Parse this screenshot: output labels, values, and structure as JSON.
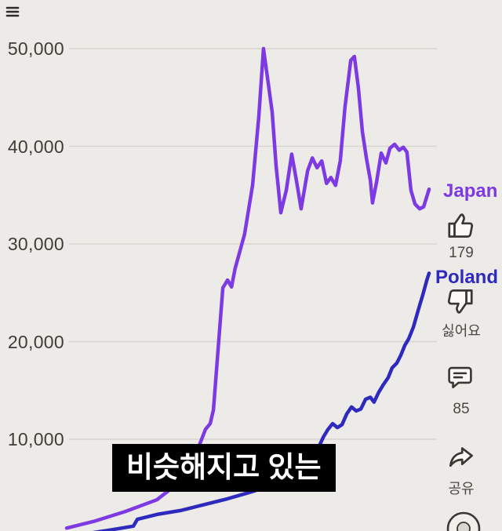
{
  "page": {
    "background": "#edebe8"
  },
  "chart_data": {
    "type": "line",
    "title": "",
    "xlabel": "",
    "ylabel": "",
    "grid": true,
    "legend_position": "line-end-labels",
    "y_axis": {
      "ticks": [
        50000,
        40000,
        30000,
        20000,
        10000
      ],
      "tick_labels": [
        "50,000",
        "40,000",
        "30,000",
        "20,000",
        "10,000"
      ],
      "range": [
        0,
        52000
      ]
    },
    "x_axis": {
      "tick_labels": [],
      "note": "time axis cropped out of frame, x given as percent of visible span"
    },
    "series": [
      {
        "name": "Japan",
        "color": "#7d3ae2",
        "points": [
          [
            0,
            900
          ],
          [
            7.6,
            1600
          ],
          [
            16.2,
            2600
          ],
          [
            24.9,
            3800
          ],
          [
            32.5,
            6000
          ],
          [
            35.7,
            8500
          ],
          [
            38.3,
            11000
          ],
          [
            39.6,
            11600
          ],
          [
            40.5,
            13000
          ],
          [
            43.1,
            25500
          ],
          [
            44.4,
            26300
          ],
          [
            45.5,
            25600
          ],
          [
            46.5,
            27500
          ],
          [
            49.1,
            31000
          ],
          [
            51.3,
            36000
          ],
          [
            53,
            43000
          ],
          [
            54.3,
            50000
          ],
          [
            55.6,
            46500
          ],
          [
            56.7,
            43500
          ],
          [
            57.8,
            38000
          ],
          [
            59.1,
            33200
          ],
          [
            60.6,
            35500
          ],
          [
            62.1,
            39200
          ],
          [
            63.4,
            36500
          ],
          [
            64.7,
            33600
          ],
          [
            66.5,
            37500
          ],
          [
            67.8,
            38800
          ],
          [
            69.1,
            37800
          ],
          [
            70.4,
            38500
          ],
          [
            71.7,
            36200
          ],
          [
            72.9,
            36800
          ],
          [
            74.2,
            36000
          ],
          [
            75.5,
            38500
          ],
          [
            76.8,
            44000
          ],
          [
            78.4,
            48800
          ],
          [
            79.4,
            49200
          ],
          [
            80.5,
            46000
          ],
          [
            81.6,
            41500
          ],
          [
            82.7,
            38800
          ],
          [
            83.8,
            36500
          ],
          [
            84.4,
            34200
          ],
          [
            85.5,
            36300
          ],
          [
            86.8,
            39300
          ],
          [
            88.1,
            38300
          ],
          [
            89.2,
            39800
          ],
          [
            90.5,
            40200
          ],
          [
            91.8,
            39600
          ],
          [
            92.9,
            39900
          ],
          [
            93.9,
            39400
          ],
          [
            95,
            35500
          ],
          [
            96.1,
            34100
          ],
          [
            97.4,
            33600
          ],
          [
            98.5,
            33800
          ],
          [
            100,
            35600
          ]
        ]
      },
      {
        "name": "Poland",
        "color": "#2e2abe",
        "points": [
          [
            3.2,
            200
          ],
          [
            11.9,
            700
          ],
          [
            18.4,
            1100
          ],
          [
            19.5,
            1800
          ],
          [
            24.9,
            2300
          ],
          [
            31.4,
            2700
          ],
          [
            37.9,
            3300
          ],
          [
            44.4,
            3900
          ],
          [
            50.9,
            4600
          ],
          [
            57.4,
            5400
          ],
          [
            61.7,
            6100
          ],
          [
            64.9,
            7000
          ],
          [
            67.1,
            8100
          ],
          [
            69.3,
            9000
          ],
          [
            70.8,
            10200
          ],
          [
            72.1,
            11000
          ],
          [
            73.4,
            11600
          ],
          [
            74.7,
            11200
          ],
          [
            76,
            11500
          ],
          [
            77.3,
            12600
          ],
          [
            78.6,
            13300
          ],
          [
            79.9,
            12900
          ],
          [
            81.2,
            13100
          ],
          [
            82.5,
            14100
          ],
          [
            83.8,
            14300
          ],
          [
            84.8,
            13800
          ],
          [
            86.1,
            14800
          ],
          [
            87.4,
            15600
          ],
          [
            88.7,
            16300
          ],
          [
            89.8,
            17300
          ],
          [
            91.1,
            17800
          ],
          [
            92.2,
            18600
          ],
          [
            93.3,
            19600
          ],
          [
            94.4,
            20300
          ],
          [
            95.7,
            21500
          ],
          [
            97,
            23200
          ],
          [
            98.3,
            24800
          ],
          [
            99.4,
            26300
          ],
          [
            100,
            27000
          ]
        ]
      }
    ]
  },
  "caption": {
    "text": "비슷해지고 있는",
    "bg": "#000000",
    "color": "#ffffff"
  },
  "action_rail": {
    "like": {
      "icon": "thumbs-up-icon",
      "count": "179"
    },
    "dislike": {
      "icon": "thumbs-down-icon",
      "label": "싫어요"
    },
    "comments": {
      "icon": "comment-icon",
      "count": "85"
    },
    "share": {
      "icon": "share-icon",
      "label": "공유"
    },
    "disc": {
      "icon": "audio-disc-icon"
    }
  },
  "top_bar": {
    "menu_icon": "menu"
  }
}
